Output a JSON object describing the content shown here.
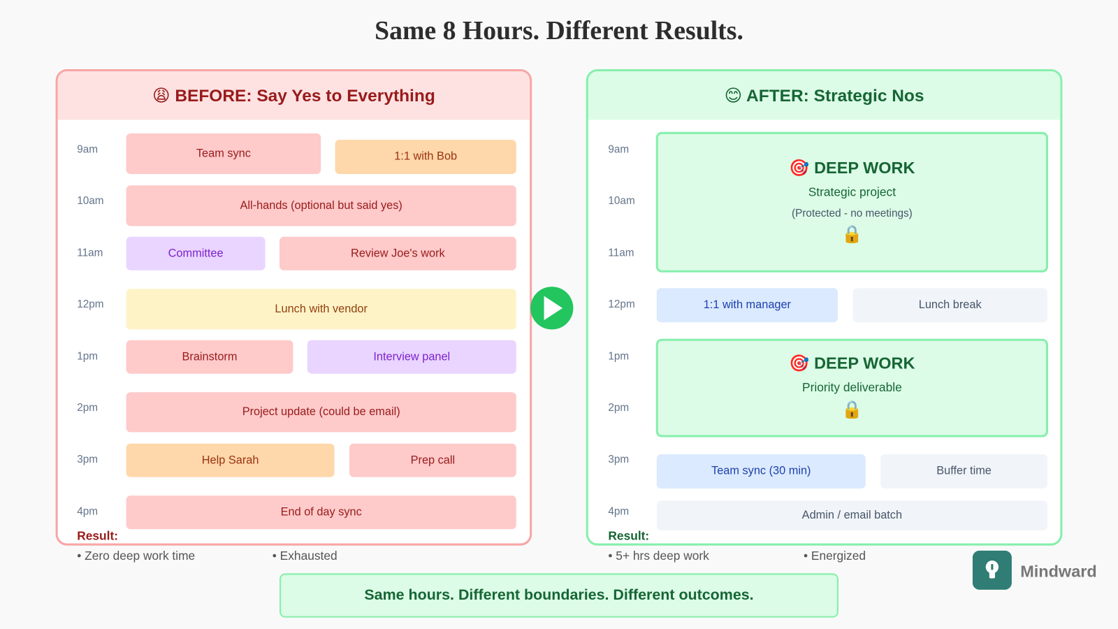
{
  "title": "Same 8 Hours. Different Results.",
  "before": {
    "heading": "😩 BEFORE: Say Yes to Everything",
    "times": [
      "9am",
      "10am",
      "11am",
      "12pm",
      "1pm",
      "2pm",
      "3pm",
      "4pm"
    ],
    "blocks": [
      {
        "label": "Team sync"
      },
      {
        "label": "1:1 with Bob"
      },
      {
        "label": "All-hands (optional but said yes)"
      },
      {
        "label": "Committee"
      },
      {
        "label": "Review Joe's work"
      },
      {
        "label": "Lunch with vendor"
      },
      {
        "label": "Brainstorm"
      },
      {
        "label": "Interview panel"
      },
      {
        "label": "Project update (could be email)"
      },
      {
        "label": "Help Sarah"
      },
      {
        "label": "Prep call"
      },
      {
        "label": "End of day sync"
      }
    ],
    "result": {
      "label": "Result:",
      "items": [
        "• Zero deep work time",
        "• Exhausted"
      ]
    }
  },
  "after": {
    "heading": "😊 AFTER: Strategic Nos",
    "times": [
      "9am",
      "10am",
      "11am",
      "12pm",
      "1pm",
      "2pm",
      "3pm",
      "4pm"
    ],
    "blocks": [
      {
        "title": "🎯 DEEP WORK",
        "lines": [
          "Strategic project",
          "(Protected - no meetings)",
          "🔒"
        ]
      },
      {
        "label": "1:1 with manager"
      },
      {
        "label": "Lunch break"
      },
      {
        "title": "🎯 DEEP WORK",
        "lines": [
          "Priority deliverable",
          "🔒"
        ]
      },
      {
        "label": "Team sync (30 min)"
      },
      {
        "label": "Buffer time"
      },
      {
        "label": "Admin / email batch"
      }
    ],
    "result": {
      "label": "Result:",
      "items": [
        "• 5+ hrs deep work",
        "• Energized"
      ]
    }
  },
  "footer": "Same hours. Different boundaries. Different outcomes.",
  "brand": "Mindward"
}
